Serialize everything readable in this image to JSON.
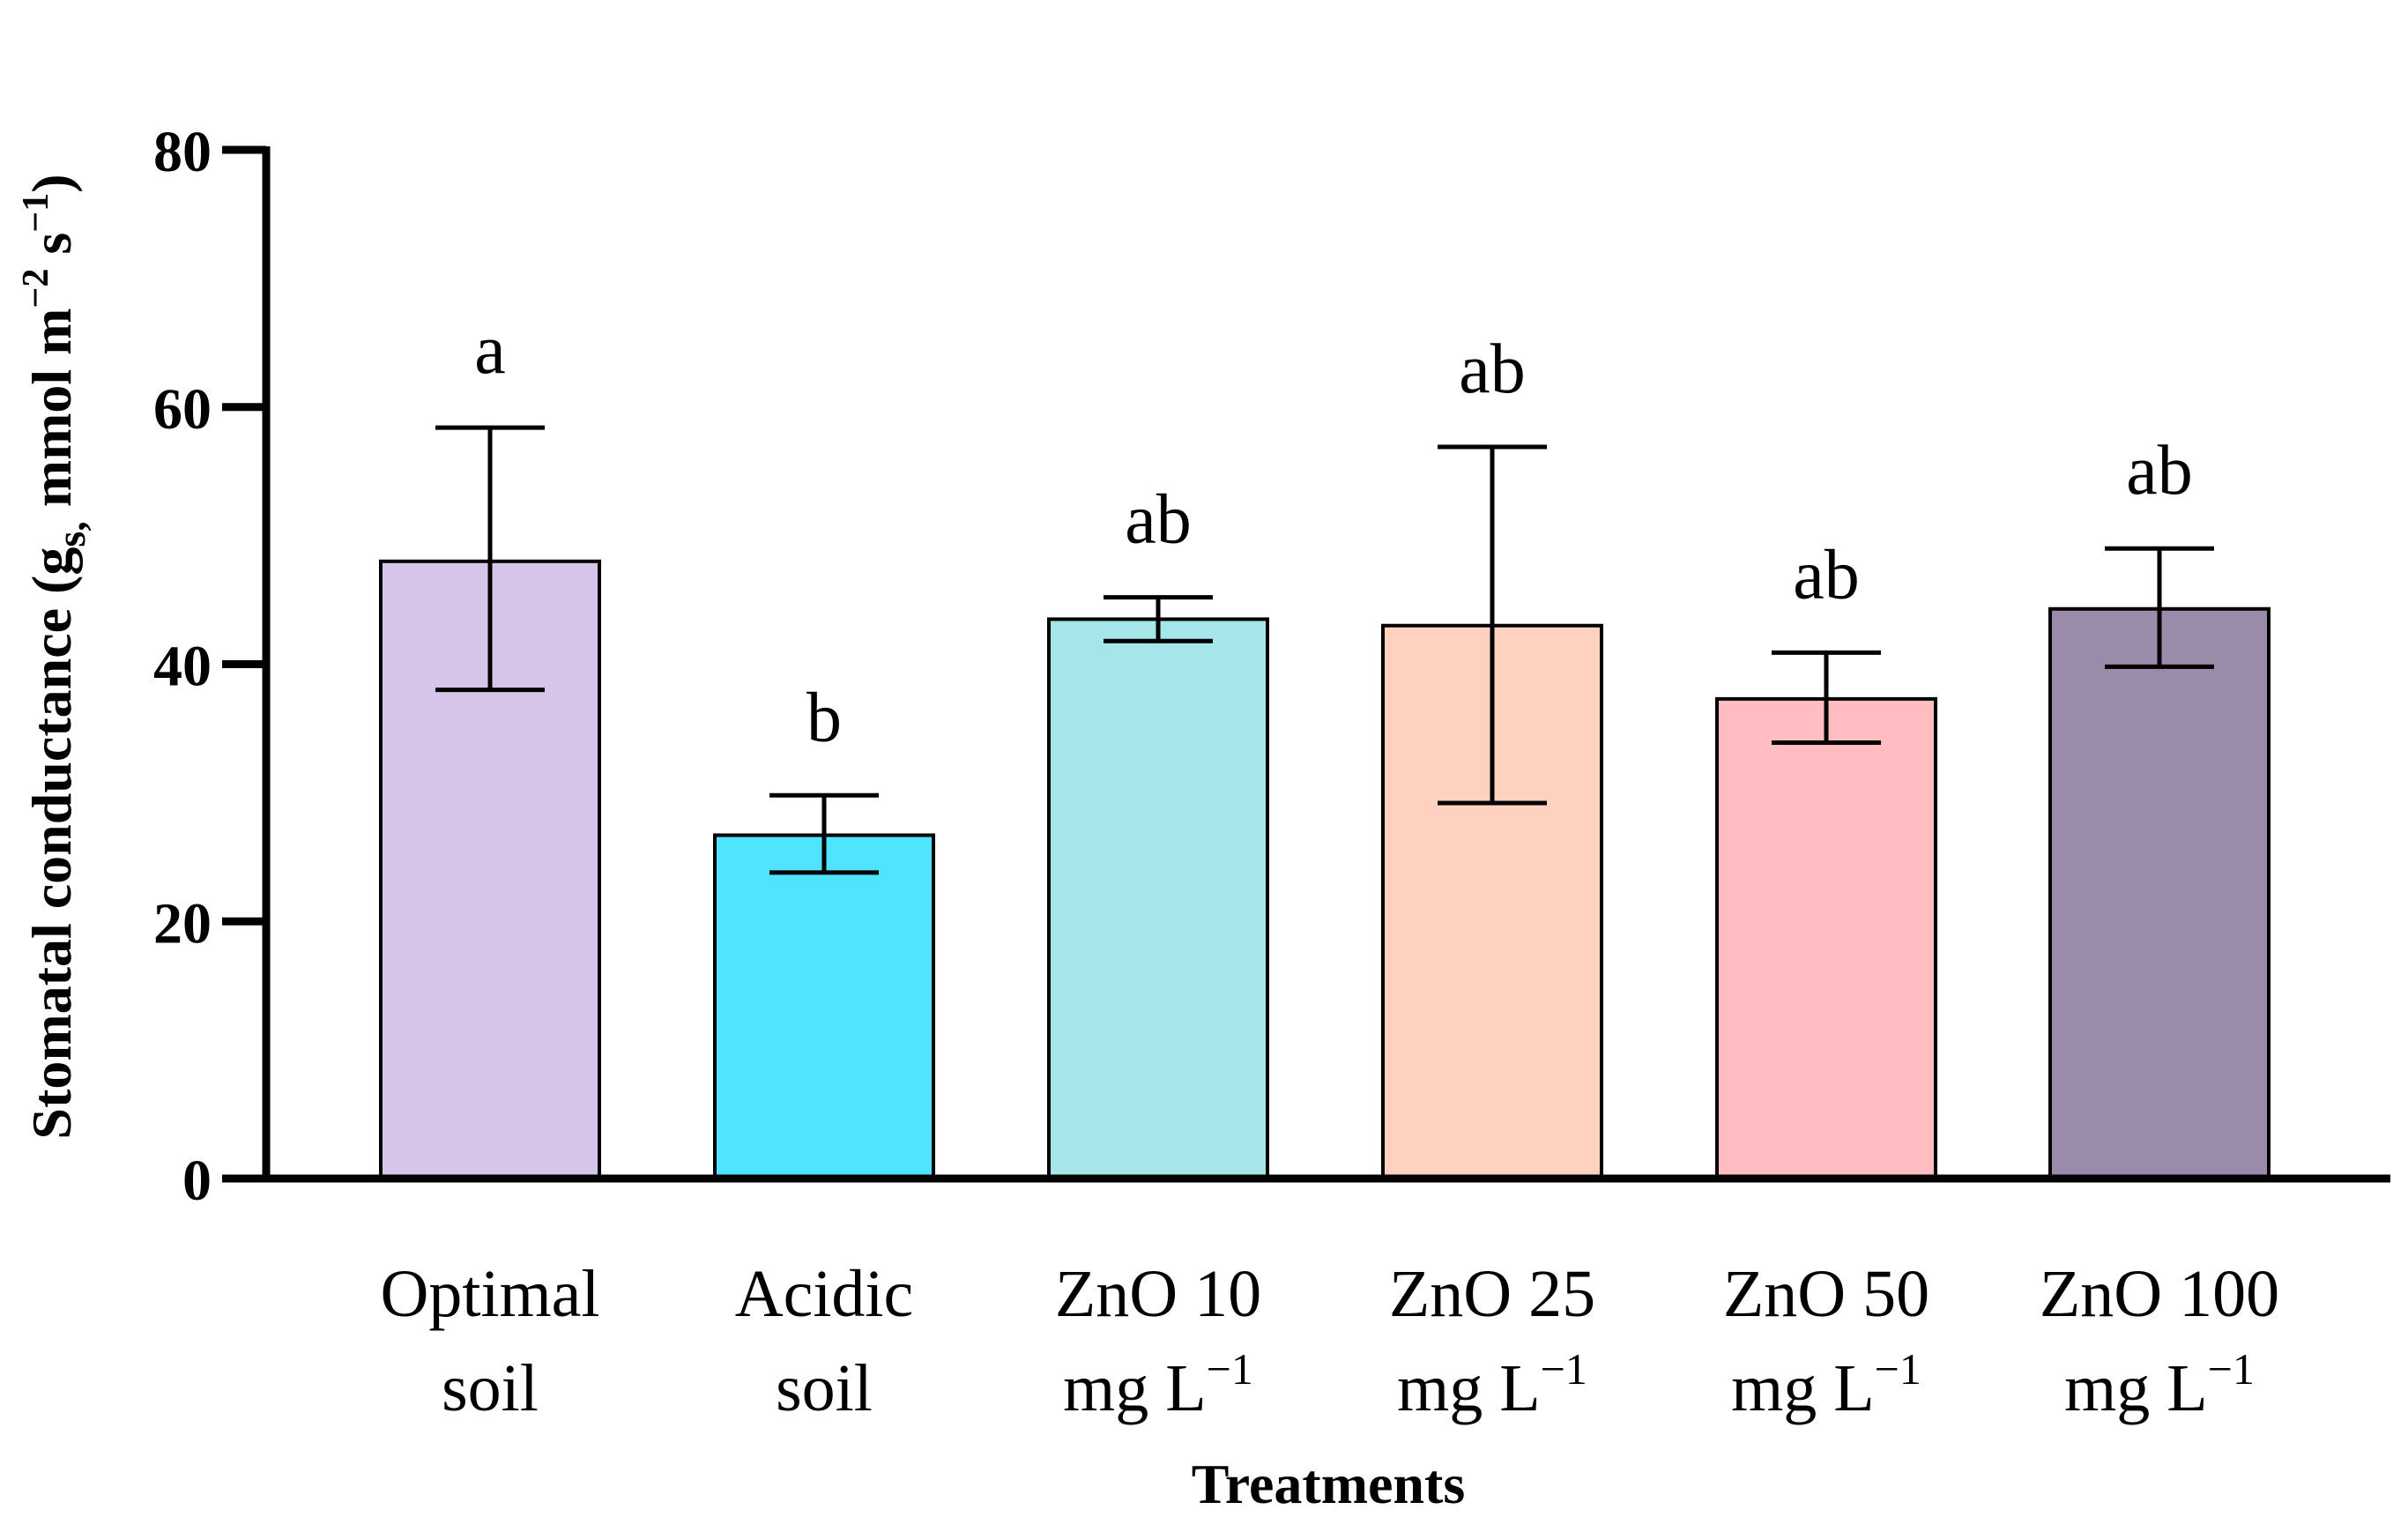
{
  "chart_data": {
    "type": "bar",
    "title": "",
    "xlabel": "Treatments",
    "ylabel": {
      "main": "Stomatal conductance (g",
      "sub": "s,",
      "unit_pre": " mmol m",
      "exp1": "−2",
      "unit_mid": " s",
      "exp2": "−1",
      "close": ")"
    },
    "ylim": [
      0,
      80
    ],
    "yticks": [
      0,
      20,
      40,
      60,
      80
    ],
    "grid": false,
    "legend": "none",
    "categories": [
      {
        "line1": "Optimal",
        "line2": "soil",
        "sup": ""
      },
      {
        "line1": "Acidic",
        "line2": "soil",
        "sup": ""
      },
      {
        "line1": "ZnO 10",
        "line2": "mg L",
        "sup": "−1"
      },
      {
        "line1": "ZnO 25",
        "line2": "mg L",
        "sup": "−1"
      },
      {
        "line1": "ZnO 50",
        "line2": "mg L",
        "sup": "−1"
      },
      {
        "line1": "ZnO 100",
        "line2": "mg L",
        "sup": "−1"
      }
    ],
    "values": [
      48,
      26.7,
      43.5,
      43,
      37.3,
      44.3
    ],
    "error_low": [
      38,
      23.8,
      41.8,
      29.2,
      33.9,
      39.8
    ],
    "error_high": [
      58.4,
      29.8,
      45.2,
      56.9,
      40.9,
      49
    ],
    "significance": [
      "a",
      "b",
      "ab",
      "ab",
      "ab",
      "ab"
    ],
    "colors": [
      "#d6c5e9",
      "#50e3ff",
      "#a5e6e9",
      "#ffd2bf",
      "#ffbdc1",
      "#9b8bab"
    ]
  }
}
